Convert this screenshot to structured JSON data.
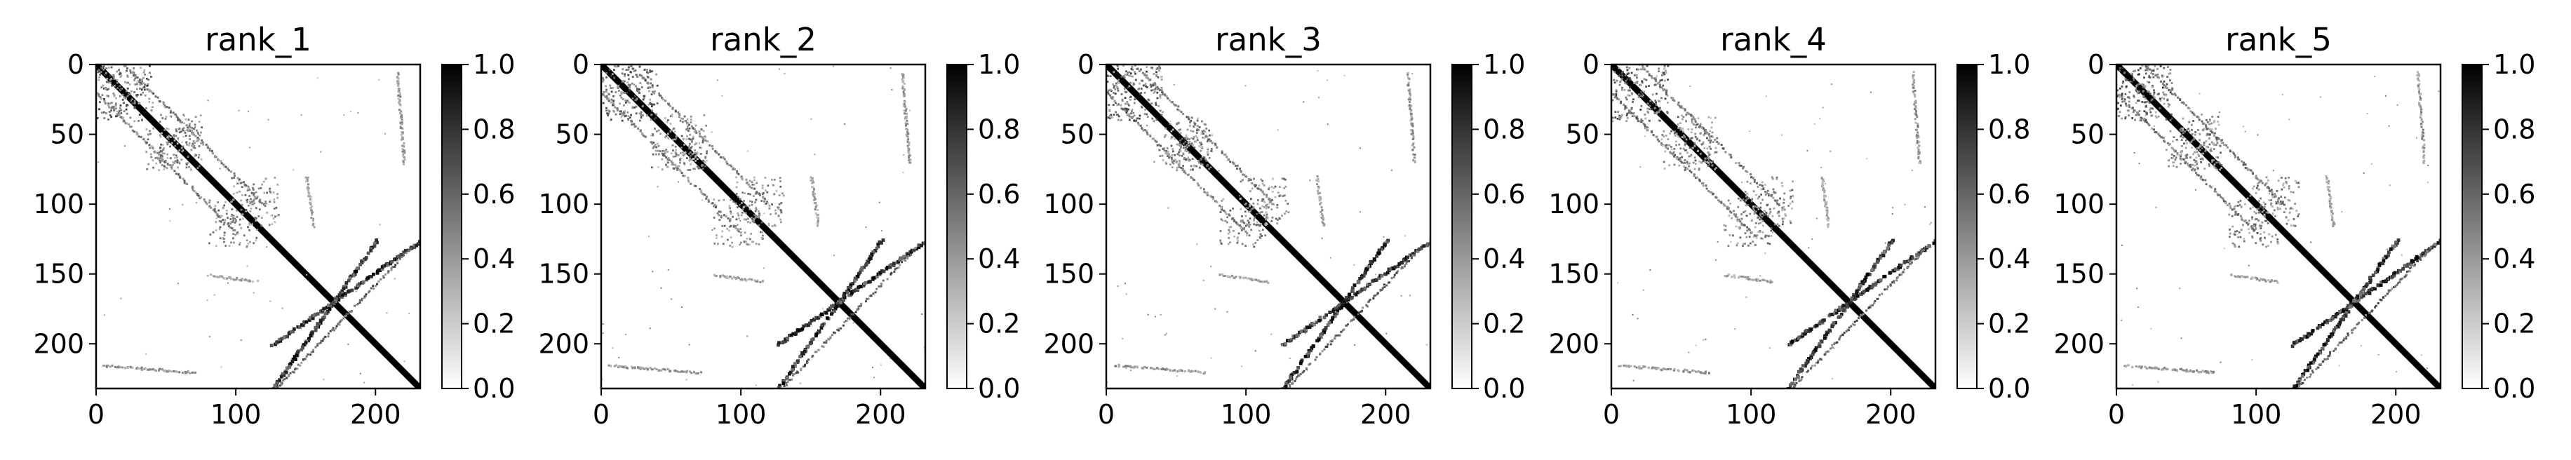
{
  "figure": {
    "background": "#ffffff",
    "cmap": "binary (white to black)"
  },
  "chart_data": [
    {
      "type": "heatmap",
      "title": "rank_1",
      "matrix_size": 232,
      "xlim": [
        0,
        232
      ],
      "ylim": [
        232,
        0
      ],
      "xticks": [
        0,
        100,
        200
      ],
      "yticks": [
        0,
        50,
        100,
        150,
        200
      ],
      "colorbar": {
        "range": [
          0.0,
          1.0
        ],
        "ticks": [
          "0.0",
          "0.2",
          "0.4",
          "0.6",
          "0.8",
          "1.0"
        ]
      },
      "contacts": [
        {
          "pattern": "diagonal",
          "start": [
            0,
            0
          ],
          "end": [
            232,
            232
          ],
          "value": 1.0
        },
        {
          "pattern": "parallel-band",
          "start": [
            20,
            0
          ],
          "end": [
            120,
            100
          ],
          "value": 0.55
        },
        {
          "pattern": "parallel-band",
          "start": [
            0,
            20
          ],
          "end": [
            100,
            120
          ],
          "value": 0.55
        },
        {
          "pattern": "cluster",
          "start": [
            0,
            0
          ],
          "end": [
            40,
            40
          ],
          "value": 0.6
        },
        {
          "pattern": "cluster",
          "start": [
            35,
            45
          ],
          "end": [
            75,
            75
          ],
          "value": 0.5
        },
        {
          "pattern": "cluster",
          "start": [
            80,
            95
          ],
          "end": [
            115,
            130
          ],
          "value": 0.5
        },
        {
          "pattern": "anti-diagonal",
          "start": [
            125,
            200
          ],
          "end": [
            232,
            125
          ],
          "value": 0.85
        },
        {
          "pattern": "anti-diagonal",
          "start": [
            200,
            125
          ],
          "end": [
            125,
            232
          ],
          "value": 0.85
        },
        {
          "pattern": "anti-diagonal",
          "start": [
            130,
            230
          ],
          "end": [
            225,
            130
          ],
          "value": 0.65
        },
        {
          "pattern": "vertical-run",
          "start": [
            215,
            5
          ],
          "end": [
            220,
            70
          ],
          "value": 0.45
        },
        {
          "pattern": "horizontal-run",
          "start": [
            5,
            215
          ],
          "end": [
            70,
            220
          ],
          "value": 0.45
        },
        {
          "pattern": "vertical-run",
          "start": [
            150,
            80
          ],
          "end": [
            155,
            115
          ],
          "value": 0.4
        },
        {
          "pattern": "horizontal-run",
          "start": [
            80,
            150
          ],
          "end": [
            115,
            155
          ],
          "value": 0.4
        }
      ]
    },
    {
      "type": "heatmap",
      "title": "rank_2",
      "matrix_size": 232,
      "xlim": [
        0,
        232
      ],
      "ylim": [
        232,
        0
      ],
      "xticks": [
        0,
        100,
        200
      ],
      "yticks": [
        0,
        50,
        100,
        150,
        200
      ],
      "colorbar": {
        "range": [
          0.0,
          1.0
        ],
        "ticks": [
          "0.0",
          "0.2",
          "0.4",
          "0.6",
          "0.8",
          "1.0"
        ]
      },
      "contacts": [
        {
          "pattern": "diagonal",
          "start": [
            0,
            0
          ],
          "end": [
            232,
            232
          ],
          "value": 1.0
        },
        {
          "pattern": "parallel-band",
          "start": [
            20,
            0
          ],
          "end": [
            120,
            100
          ],
          "value": 0.55
        },
        {
          "pattern": "parallel-band",
          "start": [
            0,
            20
          ],
          "end": [
            100,
            120
          ],
          "value": 0.55
        },
        {
          "pattern": "cluster",
          "start": [
            0,
            0
          ],
          "end": [
            40,
            40
          ],
          "value": 0.6
        },
        {
          "pattern": "cluster",
          "start": [
            35,
            45
          ],
          "end": [
            75,
            75
          ],
          "value": 0.5
        },
        {
          "pattern": "cluster",
          "start": [
            80,
            95
          ],
          "end": [
            115,
            130
          ],
          "value": 0.5
        },
        {
          "pattern": "anti-diagonal",
          "start": [
            125,
            200
          ],
          "end": [
            232,
            125
          ],
          "value": 0.85
        },
        {
          "pattern": "anti-diagonal",
          "start": [
            200,
            125
          ],
          "end": [
            125,
            232
          ],
          "value": 0.85
        },
        {
          "pattern": "anti-diagonal",
          "start": [
            130,
            230
          ],
          "end": [
            225,
            130
          ],
          "value": 0.65
        },
        {
          "pattern": "vertical-run",
          "start": [
            215,
            5
          ],
          "end": [
            220,
            70
          ],
          "value": 0.45
        },
        {
          "pattern": "horizontal-run",
          "start": [
            5,
            215
          ],
          "end": [
            70,
            220
          ],
          "value": 0.45
        },
        {
          "pattern": "vertical-run",
          "start": [
            150,
            80
          ],
          "end": [
            155,
            115
          ],
          "value": 0.4
        },
        {
          "pattern": "horizontal-run",
          "start": [
            80,
            150
          ],
          "end": [
            115,
            155
          ],
          "value": 0.4
        }
      ]
    },
    {
      "type": "heatmap",
      "title": "rank_3",
      "matrix_size": 232,
      "xlim": [
        0,
        232
      ],
      "ylim": [
        232,
        0
      ],
      "xticks": [
        0,
        100,
        200
      ],
      "yticks": [
        0,
        50,
        100,
        150,
        200
      ],
      "colorbar": {
        "range": [
          0.0,
          1.0
        ],
        "ticks": [
          "0.0",
          "0.2",
          "0.4",
          "0.6",
          "0.8",
          "1.0"
        ]
      },
      "contacts": [
        {
          "pattern": "diagonal",
          "start": [
            0,
            0
          ],
          "end": [
            232,
            232
          ],
          "value": 1.0
        },
        {
          "pattern": "parallel-band",
          "start": [
            20,
            0
          ],
          "end": [
            120,
            100
          ],
          "value": 0.55
        },
        {
          "pattern": "parallel-band",
          "start": [
            0,
            20
          ],
          "end": [
            100,
            120
          ],
          "value": 0.55
        },
        {
          "pattern": "cluster",
          "start": [
            0,
            0
          ],
          "end": [
            40,
            40
          ],
          "value": 0.6
        },
        {
          "pattern": "cluster",
          "start": [
            35,
            45
          ],
          "end": [
            75,
            75
          ],
          "value": 0.5
        },
        {
          "pattern": "cluster",
          "start": [
            80,
            95
          ],
          "end": [
            115,
            130
          ],
          "value": 0.5
        },
        {
          "pattern": "anti-diagonal",
          "start": [
            125,
            200
          ],
          "end": [
            232,
            125
          ],
          "value": 0.85
        },
        {
          "pattern": "anti-diagonal",
          "start": [
            200,
            125
          ],
          "end": [
            125,
            232
          ],
          "value": 0.85
        },
        {
          "pattern": "anti-diagonal",
          "start": [
            130,
            230
          ],
          "end": [
            225,
            130
          ],
          "value": 0.65
        },
        {
          "pattern": "vertical-run",
          "start": [
            215,
            5
          ],
          "end": [
            220,
            70
          ],
          "value": 0.45
        },
        {
          "pattern": "horizontal-run",
          "start": [
            5,
            215
          ],
          "end": [
            70,
            220
          ],
          "value": 0.45
        },
        {
          "pattern": "vertical-run",
          "start": [
            150,
            80
          ],
          "end": [
            155,
            115
          ],
          "value": 0.4
        },
        {
          "pattern": "horizontal-run",
          "start": [
            80,
            150
          ],
          "end": [
            115,
            155
          ],
          "value": 0.4
        }
      ]
    },
    {
      "type": "heatmap",
      "title": "rank_4",
      "matrix_size": 232,
      "xlim": [
        0,
        232
      ],
      "ylim": [
        232,
        0
      ],
      "xticks": [
        0,
        100,
        200
      ],
      "yticks": [
        0,
        50,
        100,
        150,
        200
      ],
      "colorbar": {
        "range": [
          0.0,
          1.0
        ],
        "ticks": [
          "0.0",
          "0.2",
          "0.4",
          "0.6",
          "0.8",
          "1.0"
        ]
      },
      "contacts": [
        {
          "pattern": "diagonal",
          "start": [
            0,
            0
          ],
          "end": [
            232,
            232
          ],
          "value": 1.0
        },
        {
          "pattern": "parallel-band",
          "start": [
            20,
            0
          ],
          "end": [
            120,
            100
          ],
          "value": 0.55
        },
        {
          "pattern": "parallel-band",
          "start": [
            0,
            20
          ],
          "end": [
            100,
            120
          ],
          "value": 0.55
        },
        {
          "pattern": "cluster",
          "start": [
            0,
            0
          ],
          "end": [
            40,
            40
          ],
          "value": 0.6
        },
        {
          "pattern": "cluster",
          "start": [
            35,
            45
          ],
          "end": [
            75,
            75
          ],
          "value": 0.5
        },
        {
          "pattern": "cluster",
          "start": [
            80,
            95
          ],
          "end": [
            115,
            130
          ],
          "value": 0.5
        },
        {
          "pattern": "anti-diagonal",
          "start": [
            125,
            200
          ],
          "end": [
            232,
            125
          ],
          "value": 0.85
        },
        {
          "pattern": "anti-diagonal",
          "start": [
            200,
            125
          ],
          "end": [
            125,
            232
          ],
          "value": 0.85
        },
        {
          "pattern": "anti-diagonal",
          "start": [
            130,
            230
          ],
          "end": [
            225,
            130
          ],
          "value": 0.65
        },
        {
          "pattern": "vertical-run",
          "start": [
            215,
            5
          ],
          "end": [
            220,
            70
          ],
          "value": 0.45
        },
        {
          "pattern": "horizontal-run",
          "start": [
            5,
            215
          ],
          "end": [
            70,
            220
          ],
          "value": 0.45
        },
        {
          "pattern": "vertical-run",
          "start": [
            150,
            80
          ],
          "end": [
            155,
            115
          ],
          "value": 0.4
        },
        {
          "pattern": "horizontal-run",
          "start": [
            80,
            150
          ],
          "end": [
            115,
            155
          ],
          "value": 0.4
        }
      ]
    },
    {
      "type": "heatmap",
      "title": "rank_5",
      "matrix_size": 232,
      "xlim": [
        0,
        232
      ],
      "ylim": [
        232,
        0
      ],
      "xticks": [
        0,
        100,
        200
      ],
      "yticks": [
        0,
        50,
        100,
        150,
        200
      ],
      "colorbar": {
        "range": [
          0.0,
          1.0
        ],
        "ticks": [
          "0.0",
          "0.2",
          "0.4",
          "0.6",
          "0.8",
          "1.0"
        ]
      },
      "contacts": [
        {
          "pattern": "diagonal",
          "start": [
            0,
            0
          ],
          "end": [
            232,
            232
          ],
          "value": 1.0
        },
        {
          "pattern": "parallel-band",
          "start": [
            20,
            0
          ],
          "end": [
            120,
            100
          ],
          "value": 0.55
        },
        {
          "pattern": "parallel-band",
          "start": [
            0,
            20
          ],
          "end": [
            100,
            120
          ],
          "value": 0.55
        },
        {
          "pattern": "cluster",
          "start": [
            0,
            0
          ],
          "end": [
            40,
            40
          ],
          "value": 0.6
        },
        {
          "pattern": "cluster",
          "start": [
            35,
            45
          ],
          "end": [
            75,
            75
          ],
          "value": 0.5
        },
        {
          "pattern": "cluster",
          "start": [
            80,
            95
          ],
          "end": [
            115,
            130
          ],
          "value": 0.5
        },
        {
          "pattern": "anti-diagonal",
          "start": [
            125,
            200
          ],
          "end": [
            232,
            125
          ],
          "value": 0.85
        },
        {
          "pattern": "anti-diagonal",
          "start": [
            200,
            125
          ],
          "end": [
            125,
            232
          ],
          "value": 0.85
        },
        {
          "pattern": "anti-diagonal",
          "start": [
            130,
            230
          ],
          "end": [
            225,
            130
          ],
          "value": 0.65
        },
        {
          "pattern": "vertical-run",
          "start": [
            215,
            5
          ],
          "end": [
            220,
            70
          ],
          "value": 0.45
        },
        {
          "pattern": "horizontal-run",
          "start": [
            5,
            215
          ],
          "end": [
            70,
            220
          ],
          "value": 0.45
        },
        {
          "pattern": "vertical-run",
          "start": [
            150,
            80
          ],
          "end": [
            155,
            115
          ],
          "value": 0.4
        },
        {
          "pattern": "horizontal-run",
          "start": [
            80,
            150
          ],
          "end": [
            115,
            155
          ],
          "value": 0.4
        }
      ]
    }
  ]
}
